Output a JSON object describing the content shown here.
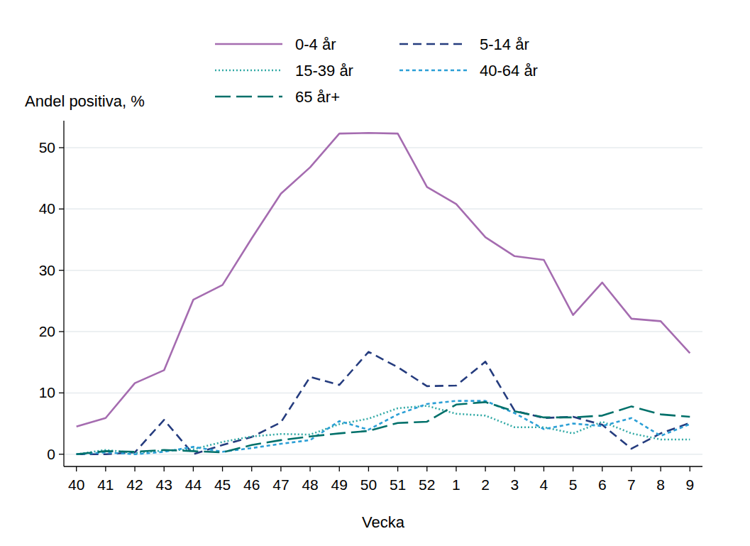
{
  "chart_data": {
    "type": "line",
    "y_label": "Andel positiva, %",
    "x_label": "Vecka",
    "categories": [
      "40",
      "41",
      "42",
      "43",
      "44",
      "45",
      "46",
      "47",
      "48",
      "49",
      "50",
      "51",
      "52",
      "1",
      "2",
      "3",
      "4",
      "5",
      "6",
      "7",
      "8",
      "9"
    ],
    "series": [
      {
        "name": "0-4 år",
        "color": "#a56cb0",
        "line_style": "solid",
        "values": [
          4.5,
          5.9,
          11.6,
          13.7,
          25.2,
          27.6,
          35.2,
          42.5,
          46.8,
          52.3,
          52.4,
          52.3,
          43.6,
          40.8,
          35.4,
          32.3,
          31.7,
          22.7,
          28.0,
          22.1,
          21.7,
          16.5
        ]
      },
      {
        "name": "5-14 år",
        "color": "#253c7e",
        "line_style": "dashed",
        "values": [
          0,
          0,
          0.3,
          5.6,
          0,
          1.5,
          2.8,
          5.2,
          12.6,
          11.3,
          16.7,
          14.2,
          11.1,
          11.2,
          15.1,
          7.1,
          5.9,
          6.1,
          4.8,
          0.9,
          3.4,
          5.1
        ]
      },
      {
        "name": "15-39 år",
        "color": "#33aaa6",
        "line_style": "dotted",
        "values": [
          0,
          0.7,
          0.2,
          0.6,
          0.8,
          2.0,
          2.9,
          3.3,
          3.2,
          4.9,
          5.8,
          7.5,
          7.9,
          6.6,
          6.3,
          4.4,
          4.4,
          3.4,
          5.3,
          3.4,
          2.4,
          2.4
        ]
      },
      {
        "name": "40-64 år",
        "color": "#2b9fd6",
        "line_style": "short-dash",
        "values": [
          0,
          0.3,
          0,
          0.4,
          1.2,
          0.4,
          1.0,
          1.7,
          2.3,
          5.4,
          4.0,
          6.5,
          8.2,
          8.7,
          8.7,
          6.7,
          4.1,
          5.0,
          4.6,
          5.9,
          3.0,
          4.9
        ]
      },
      {
        "name": "65 år+",
        "color": "#00706a",
        "line_style": "long-dash",
        "values": [
          0,
          0.5,
          0.4,
          0.7,
          0.5,
          0.3,
          1.5,
          2.3,
          2.9,
          3.4,
          3.8,
          5.1,
          5.3,
          8.1,
          8.5,
          7.0,
          6.0,
          6.0,
          6.3,
          7.8,
          6.5,
          6.1
        ]
      }
    ],
    "ylim": [
      -2,
      54.4
    ],
    "yticks": [
      0,
      10,
      20,
      30,
      40,
      50
    ],
    "grid": true,
    "legend": "top"
  }
}
